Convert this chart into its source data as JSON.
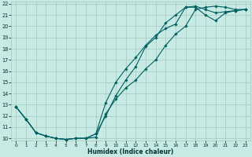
{
  "xlabel": "Humidex (Indice chaleur)",
  "bg_color": "#c8eae4",
  "grid_color": "#a0c8c0",
  "line_color": "#006060",
  "xlim": [
    -0.5,
    23.5
  ],
  "ylim": [
    9.8,
    22.2
  ],
  "xtick_labels": [
    "0",
    "1",
    "2",
    "3",
    "4",
    "5",
    "6",
    "7",
    "8",
    "9",
    "10",
    "11",
    "12",
    "13",
    "14",
    "15",
    "16",
    "17",
    "18",
    "19",
    "20",
    "21",
    "22",
    "23"
  ],
  "ytick_labels": [
    "10",
    "11",
    "12",
    "13",
    "14",
    "15",
    "16",
    "17",
    "18",
    "19",
    "20",
    "21",
    "22"
  ],
  "line1_x": [
    0,
    1,
    2,
    3,
    4,
    5,
    6,
    7,
    8,
    9,
    10,
    11,
    12,
    13,
    14,
    15,
    16,
    17,
    18,
    19,
    20,
    21,
    22,
    23
  ],
  "line1_y": [
    12.8,
    11.7,
    10.5,
    10.2,
    10.0,
    9.9,
    10.0,
    10.0,
    10.1,
    12.2,
    13.5,
    14.5,
    15.2,
    16.2,
    17.0,
    18.3,
    19.3,
    20.0,
    21.5,
    21.7,
    21.8,
    21.7,
    21.5,
    21.5
  ],
  "line2_x": [
    0,
    1,
    2,
    3,
    4,
    5,
    6,
    7,
    8,
    9,
    10,
    11,
    12,
    13,
    14,
    15,
    16,
    17,
    18,
    19,
    20,
    21,
    22,
    23
  ],
  "line2_y": [
    12.8,
    11.7,
    10.5,
    10.2,
    10.0,
    9.9,
    10.0,
    10.0,
    10.4,
    13.2,
    15.0,
    16.2,
    17.2,
    18.3,
    19.2,
    19.8,
    20.2,
    21.7,
    21.8,
    21.5,
    21.2,
    21.3,
    21.4,
    21.5
  ],
  "line3_x": [
    0,
    1,
    2,
    3,
    4,
    5,
    6,
    7,
    8,
    9,
    10,
    11,
    12,
    13,
    14,
    15,
    16,
    17,
    18,
    19,
    20,
    21,
    22,
    23
  ],
  "line3_y": [
    12.8,
    11.7,
    10.5,
    10.2,
    10.0,
    9.9,
    10.0,
    10.0,
    10.4,
    12.0,
    13.8,
    15.2,
    16.4,
    18.2,
    19.0,
    20.3,
    21.0,
    21.7,
    21.7,
    21.0,
    20.5,
    21.2,
    21.4,
    21.5
  ]
}
